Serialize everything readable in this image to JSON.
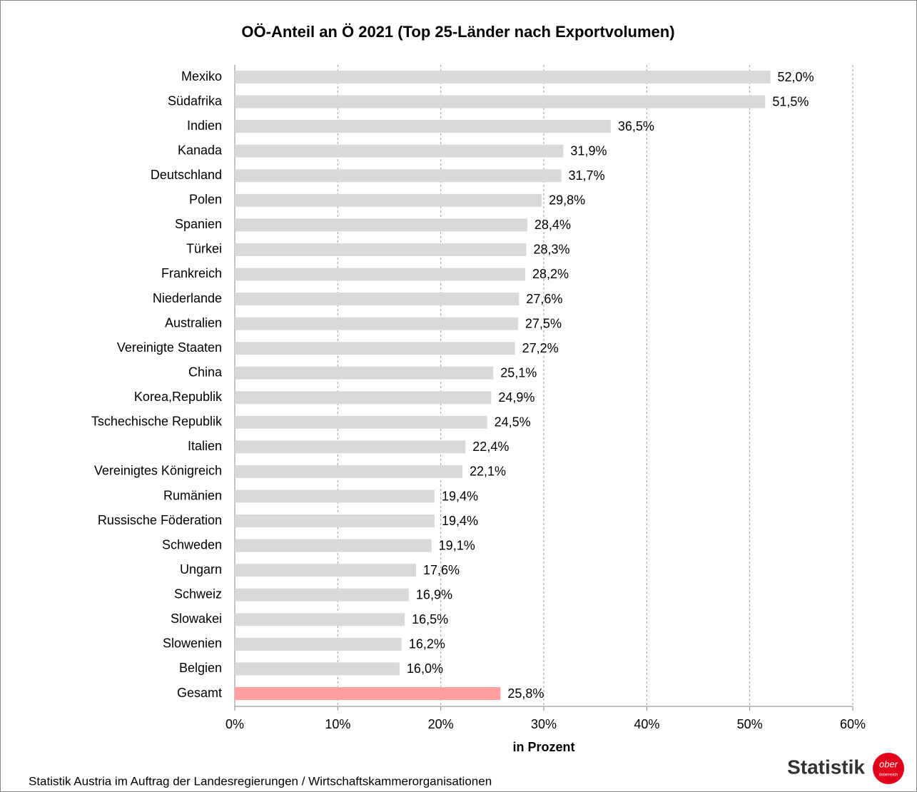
{
  "chart_data": {
    "type": "hbar",
    "title": "OÖ-Anteil an Ö 2021 (Top 25-Länder nach Exportvolumen)",
    "x_label": "in Prozent",
    "categories": [
      "Mexiko",
      "Südafrika",
      "Indien",
      "Kanada",
      "Deutschland",
      "Polen",
      "Spanien",
      "Türkei",
      "Frankreich",
      "Niederlande",
      "Australien",
      "Vereinigte Staaten",
      "China",
      "Korea,Republik",
      "Tschechische Republik",
      "Italien",
      "Vereinigtes Königreich",
      "Rumänien",
      "Russische Föderation",
      "Schweden",
      "Ungarn",
      "Schweiz",
      "Slowakei",
      "Slowenien",
      "Belgien",
      "Gesamt"
    ],
    "values": [
      52.0,
      51.5,
      36.5,
      31.9,
      31.7,
      29.8,
      28.4,
      28.3,
      28.2,
      27.6,
      27.5,
      27.2,
      25.1,
      24.9,
      24.5,
      22.4,
      22.1,
      19.4,
      19.4,
      19.1,
      17.6,
      16.9,
      16.5,
      16.2,
      16.0,
      25.8
    ],
    "value_labels": [
      "52,0%",
      "51,5%",
      "36,5%",
      "31,9%",
      "31,7%",
      "29,8%",
      "28,4%",
      "28,3%",
      "28,2%",
      "27,6%",
      "27,5%",
      "27,2%",
      "25,1%",
      "24,9%",
      "24,5%",
      "22,4%",
      "22,1%",
      "19,4%",
      "19,4%",
      "19,1%",
      "17,6%",
      "16,9%",
      "16,5%",
      "16,2%",
      "16,0%",
      "25,8%"
    ],
    "colors": [
      "#d9d9d9",
      "#d9d9d9",
      "#d9d9d9",
      "#d9d9d9",
      "#d9d9d9",
      "#d9d9d9",
      "#d9d9d9",
      "#d9d9d9",
      "#d9d9d9",
      "#d9d9d9",
      "#d9d9d9",
      "#d9d9d9",
      "#d9d9d9",
      "#d9d9d9",
      "#d9d9d9",
      "#d9d9d9",
      "#d9d9d9",
      "#d9d9d9",
      "#d9d9d9",
      "#d9d9d9",
      "#d9d9d9",
      "#d9d9d9",
      "#d9d9d9",
      "#d9d9d9",
      "#d9d9d9",
      "#ff9f9f"
    ],
    "xlim": [
      0,
      60
    ],
    "xticks": [
      {
        "value": 0,
        "label": "0%"
      },
      {
        "value": 10,
        "label": "10%"
      },
      {
        "value": 20,
        "label": "20%"
      },
      {
        "value": 30,
        "label": "30%"
      },
      {
        "value": 40,
        "label": "40%"
      },
      {
        "value": 50,
        "label": "50%"
      },
      {
        "value": 60,
        "label": "60%"
      }
    ],
    "grid": true
  },
  "footer": {
    "source": "Statistik Austria im Auftrag der Landesregierungen / Wirtschaftskammerorganisationen",
    "logo_text": "Statistik",
    "badge_top": "ober",
    "badge_bottom": "österreich"
  }
}
